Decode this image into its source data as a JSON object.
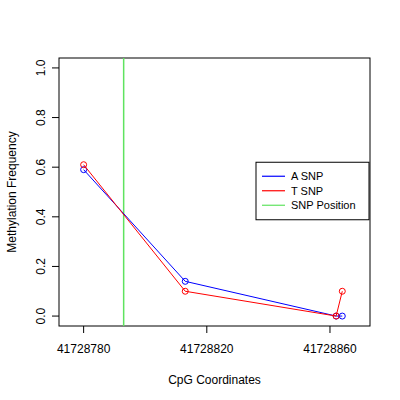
{
  "chart_data": {
    "type": "line",
    "x_label": "CpG Coordinates",
    "y_label": "Methylation Frequency",
    "x": [
      41728780,
      41728813,
      41728862,
      41728864
    ],
    "series": [
      {
        "name": "A SNP",
        "color": "#0000ff",
        "values": [
          0.59,
          0.14,
          0.0,
          0.0
        ],
        "marker": "circle",
        "line_style": "solid"
      },
      {
        "name": "T SNP",
        "color": "#ff0000",
        "values": [
          0.61,
          0.1,
          0.0,
          0.1
        ],
        "marker": "circle",
        "line_style": "solid"
      }
    ],
    "snp_line": {
      "name": "SNP Position",
      "color": "#5fe35f",
      "x": 41728793
    },
    "xlim": [
      41728772,
      41728873
    ],
    "xticks": [
      41728780,
      41728820,
      41728860
    ],
    "ylim": [
      -0.04,
      1.04
    ],
    "yticks": [
      {
        "value": 0,
        "label": "0.0"
      },
      {
        "value": 0.2,
        "label": "0.2"
      },
      {
        "value": 0.4,
        "label": "0.4"
      },
      {
        "value": 0.6,
        "label": "0.6"
      },
      {
        "value": 0.8,
        "label": "0.8"
      },
      {
        "value": 1.0,
        "label": "1.0"
      }
    ],
    "legend": "right"
  }
}
